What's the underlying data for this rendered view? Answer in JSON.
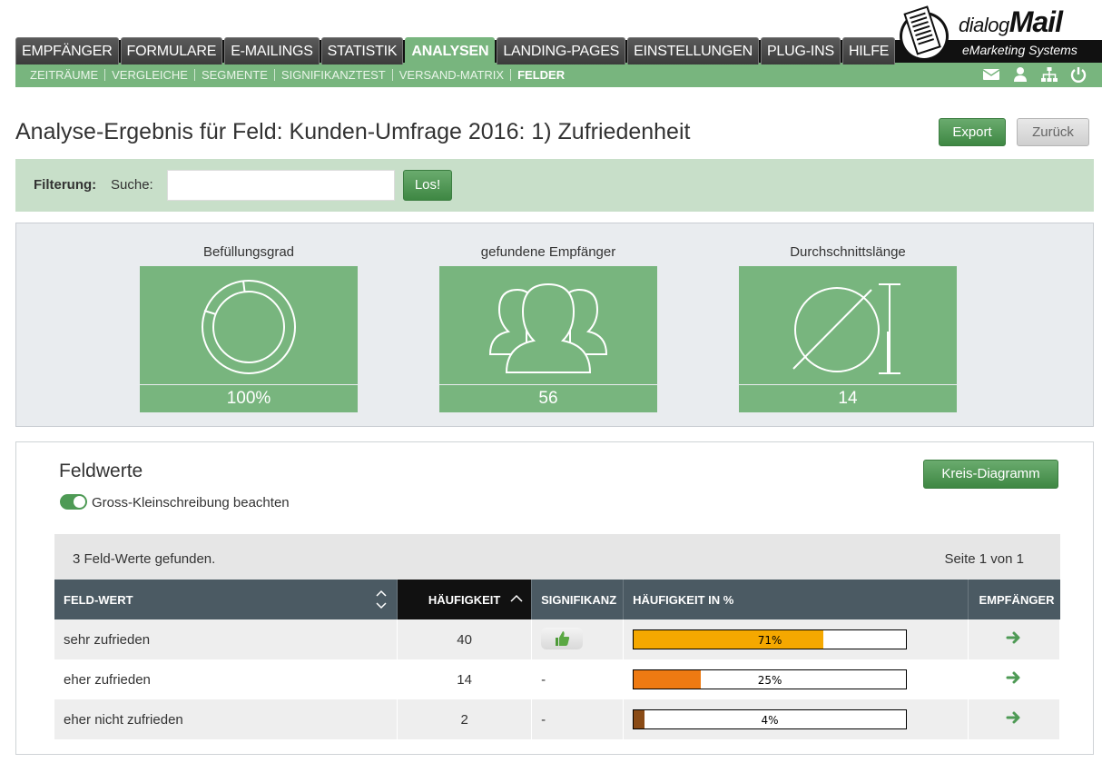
{
  "logo": {
    "dialog": "dialog",
    "mail": "Mail",
    "subtitle": "eMarketing Systems"
  },
  "mainnav": [
    "EMPFÄNGER",
    "FORMULARE",
    "E-MAILINGS",
    "STATISTIK",
    "ANALYSEN",
    "LANDING-PAGES",
    "EINSTELLUNGEN",
    "PLUG-INS",
    "HILFE"
  ],
  "subnav": [
    "ZEITRÄUME",
    "VERGLEICHE",
    "SEGMENTE",
    "SIGNIFIKANZTEST",
    "VERSAND-MATRIX",
    "FELDER"
  ],
  "page": {
    "title": "Analyse-Ergebnis für Feld: Kunden-Umfrage 2016: 1) Zufriedenheit",
    "export": "Export",
    "back": "Zurück"
  },
  "filter": {
    "label": "Filterung:",
    "search_label": "Suche:",
    "search_value": "",
    "go": "Los!"
  },
  "stats": [
    {
      "label": "Befüllungsgrad",
      "value": "100%"
    },
    {
      "label": "gefundene Empfänger",
      "value": "56"
    },
    {
      "label": "Durchschnittslänge",
      "value": "14"
    }
  ],
  "fieldvalues": {
    "title": "Feldwerte",
    "chart_button": "Kreis-Diagramm",
    "case_label": "Gross-Kleinschreibung beachten",
    "found": "3 Feld-Werte gefunden.",
    "page": "Seite 1 von 1",
    "columns": [
      "FELD-WERT",
      "HÄUFIGKEIT",
      "SIGNIFIKANZ",
      "HÄUFIGKEIT IN %",
      "EMPFÄNGER"
    ],
    "rows": [
      {
        "value": "sehr zufrieden",
        "count": "40",
        "sig": "",
        "pct": "71%",
        "pct_num": 71,
        "color": "#f5a800"
      },
      {
        "value": "eher zufrieden",
        "count": "14",
        "sig": "-",
        "pct": "25%",
        "pct_num": 25,
        "color": "#ee7a12"
      },
      {
        "value": "eher nicht zufrieden",
        "count": "2",
        "sig": "-",
        "pct": "4%",
        "pct_num": 4,
        "color": "#8a4b16"
      }
    ]
  }
}
